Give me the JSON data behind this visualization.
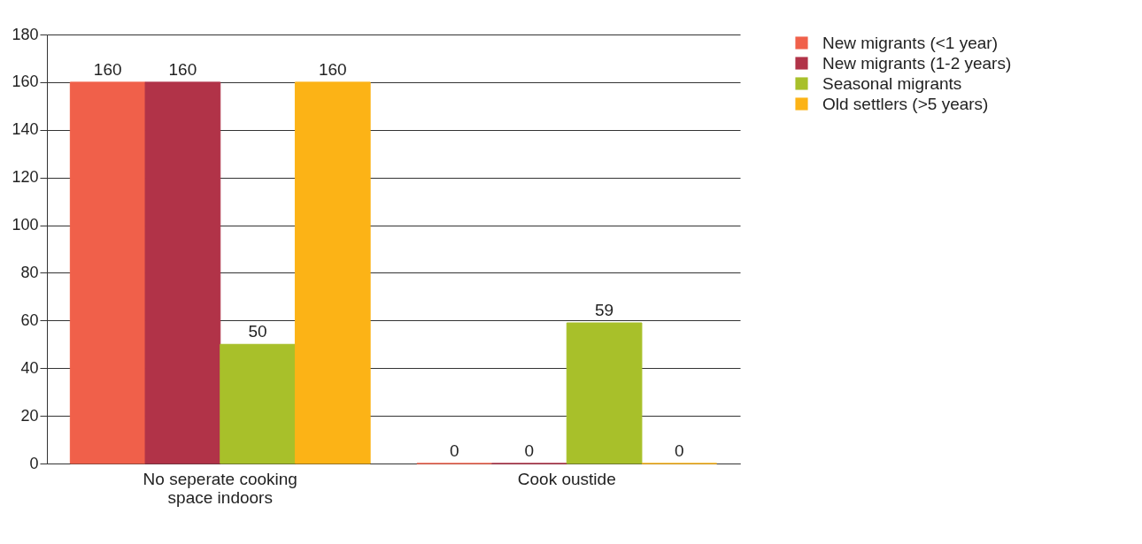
{
  "chart_data": {
    "type": "bar",
    "categories": [
      "No seperate cooking space indoors",
      "Cook oustide"
    ],
    "series": [
      {
        "name": "New migrants (<1 year)",
        "color": "#f0604a",
        "values": [
          160,
          0
        ]
      },
      {
        "name": "New migrants (1-2 years)",
        "color": "#b13348",
        "values": [
          160,
          0
        ]
      },
      {
        "name": "Seasonal migrants",
        "color": "#a8c02a",
        "values": [
          50,
          59
        ]
      },
      {
        "name": "Old settlers (>5 years)",
        "color": "#fcb316",
        "values": [
          160,
          0
        ]
      }
    ],
    "ylim": [
      0,
      180
    ],
    "yticks": [
      0,
      20,
      40,
      60,
      80,
      100,
      120,
      140,
      160,
      180
    ],
    "grid": "y",
    "legend": "top right",
    "data_labels": true
  }
}
